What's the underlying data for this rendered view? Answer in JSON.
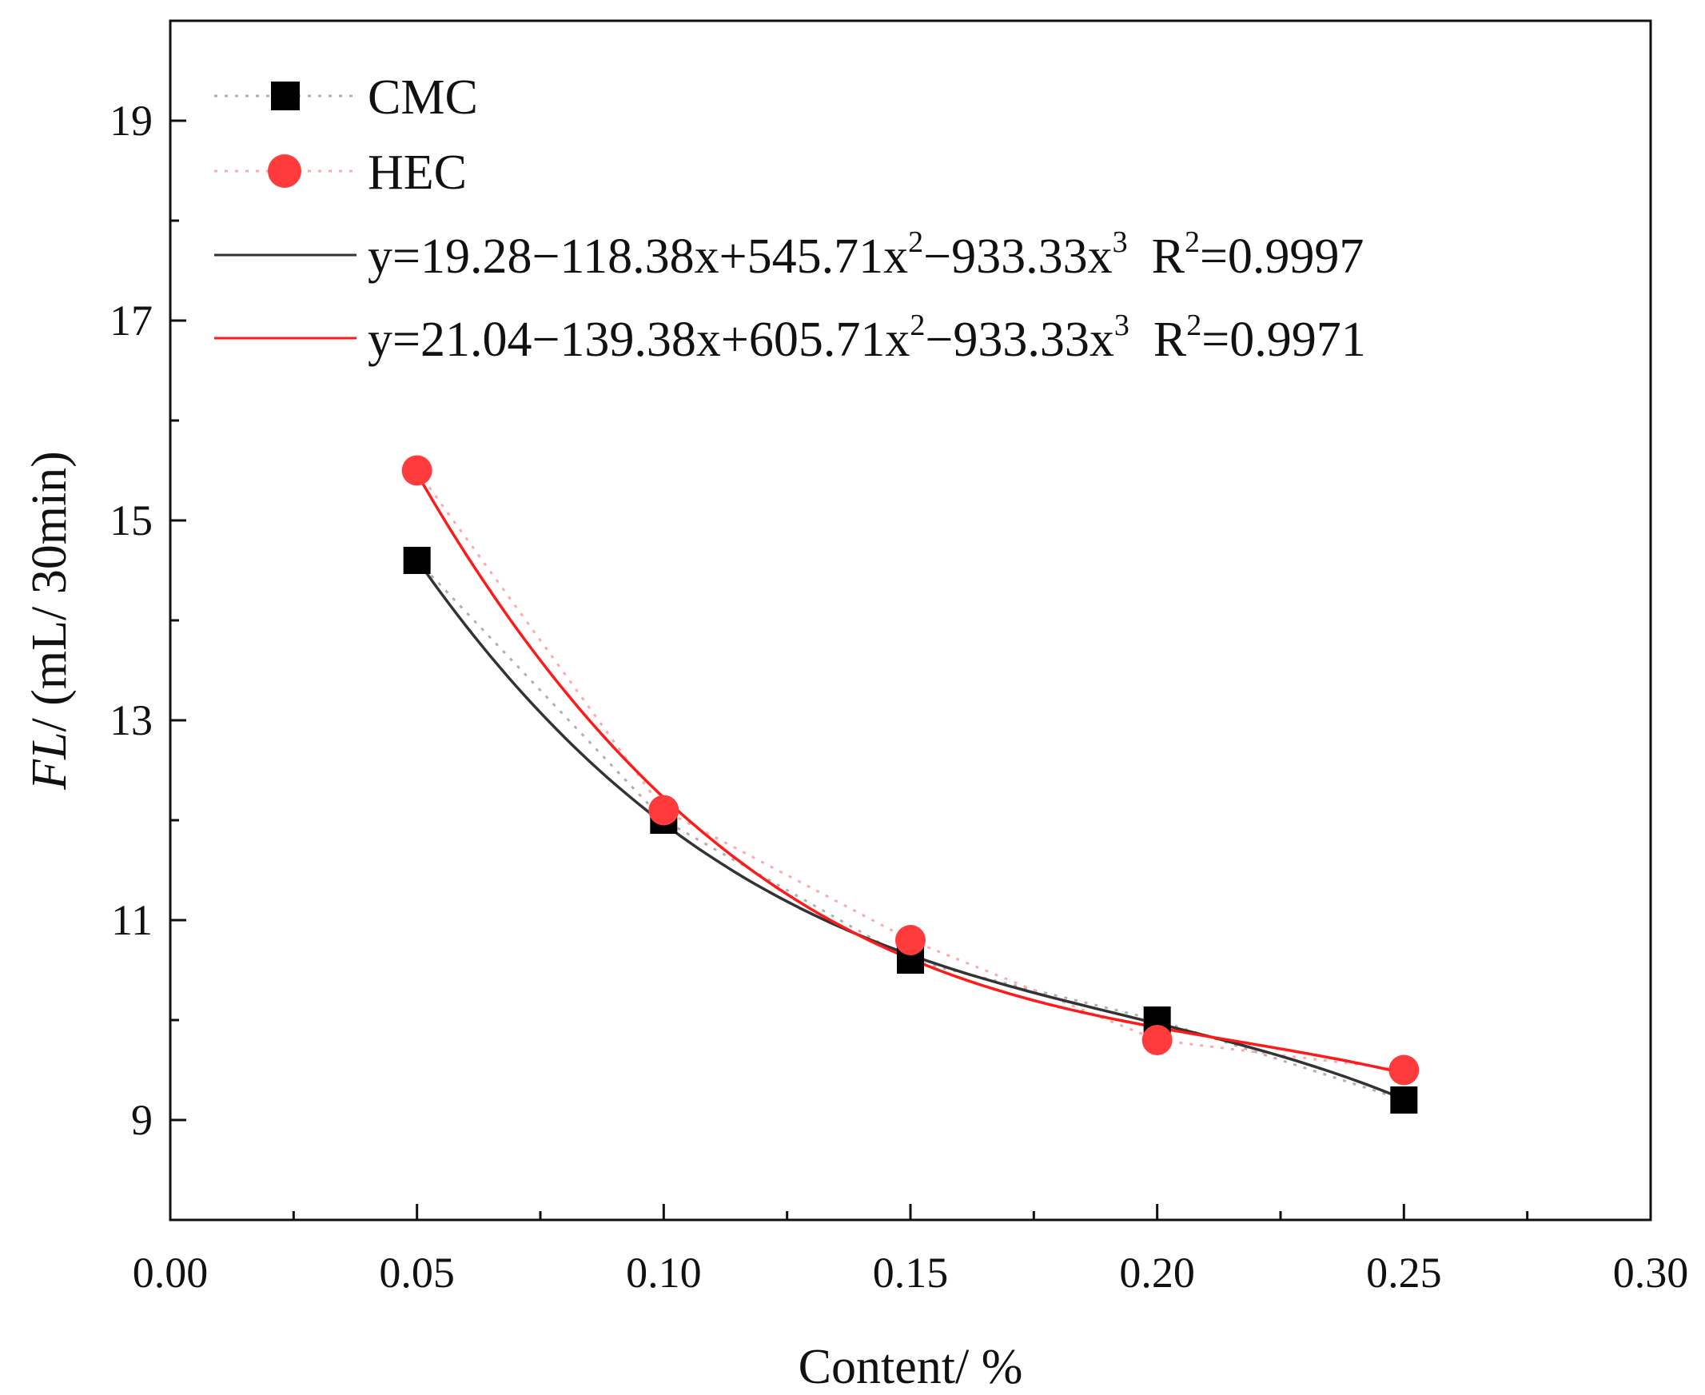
{
  "chart_data": {
    "type": "scatter",
    "title": "",
    "xlabel": "Content/ %",
    "ylabel_italic": "FL",
    "ylabel_rest": "/ (mL/ 30min)",
    "xlim": [
      0.0,
      0.3
    ],
    "ylim": [
      8.0,
      20.0
    ],
    "x_major_ticks": [
      0.0,
      0.05,
      0.1,
      0.15,
      0.2,
      0.25,
      0.3
    ],
    "x_tick_labels": [
      "0.00",
      "0.05",
      "0.10",
      "0.15",
      "0.20",
      "0.25",
      "0.30"
    ],
    "x_minor_ticks": [
      0.025,
      0.075,
      0.125,
      0.175,
      0.225,
      0.275
    ],
    "y_major_ticks": [
      9,
      11,
      13,
      15,
      17,
      19
    ],
    "y_tick_labels": [
      "9",
      "11",
      "13",
      "15",
      "17",
      "19"
    ],
    "y_minor_ticks": [
      8,
      10,
      12,
      14,
      16,
      18,
      20
    ],
    "grid": false,
    "legend_position": "top-left",
    "series": [
      {
        "name": "CMC",
        "marker": "square",
        "color": "#000000",
        "x": [
          0.05,
          0.1,
          0.15,
          0.2,
          0.25
        ],
        "y": [
          14.6,
          12.0,
          10.6,
          10.0,
          9.2
        ]
      },
      {
        "name": "HEC",
        "marker": "circle",
        "color": "#ff3b3b",
        "x": [
          0.05,
          0.1,
          0.15,
          0.2,
          0.25
        ],
        "y": [
          15.5,
          12.1,
          10.8,
          9.8,
          9.5
        ]
      }
    ],
    "fits": [
      {
        "series": "CMC",
        "color": "#333333",
        "coefficients": [
          19.28,
          -118.38,
          545.71,
          -933.33
        ],
        "eq_prefix": "y=19.28−118.38x+545.71x",
        "eq_mid": "−933.33x",
        "r2_label": "R",
        "r2_value": "=0.9997",
        "exp2": "2",
        "exp3": "3",
        "exp_r": "2"
      },
      {
        "series": "HEC",
        "color": "#ff1a1a",
        "coefficients": [
          21.04,
          -139.38,
          605.71,
          -933.33
        ],
        "eq_prefix": "y=21.04−139.38x+605.71x",
        "eq_mid": "−933.33x",
        "r2_label": "R",
        "r2_value": "=0.9971",
        "exp2": "2",
        "exp3": "3",
        "exp_r": "2"
      }
    ]
  }
}
